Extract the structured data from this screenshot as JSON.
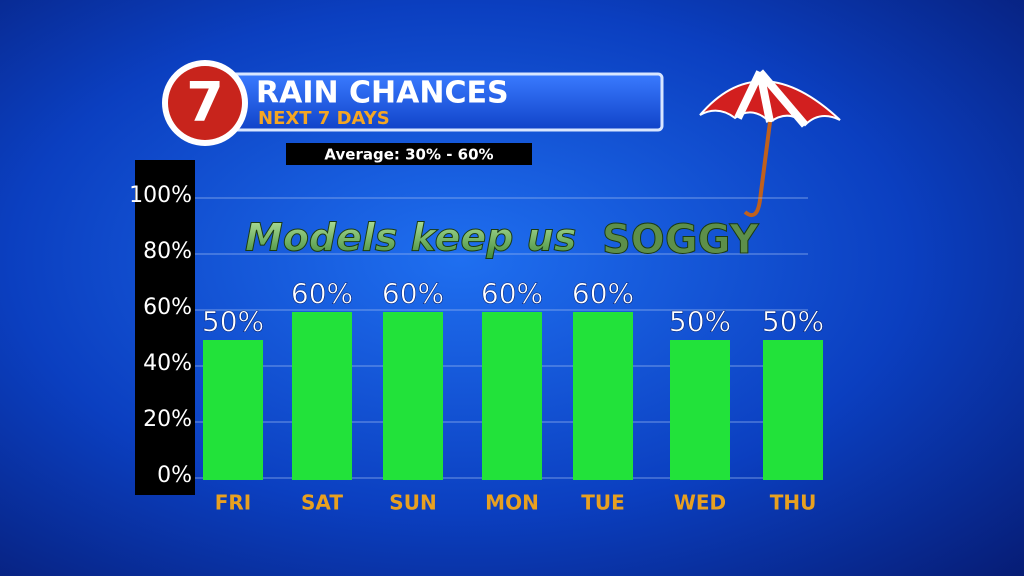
{
  "chart_data": {
    "type": "bar",
    "logo": "7",
    "title": "RAIN CHANCES",
    "subtitle": "NEXT 7 DAYS",
    "note": "Average: 30% - 60%",
    "annotation": "Models keep us",
    "annotation_emphasis": "SOGGY",
    "categories": [
      "FRI",
      "SAT",
      "SUN",
      "MON",
      "TUE",
      "WED",
      "THU"
    ],
    "values": [
      50,
      60,
      60,
      60,
      60,
      50,
      50
    ],
    "value_labels": [
      "50%",
      "60%",
      "60%",
      "60%",
      "60%",
      "50%",
      "50%"
    ],
    "color": "#22e23a",
    "ylim": [
      0,
      100
    ],
    "yticks": [
      {
        "value": 0,
        "label": "0%"
      },
      {
        "value": 20,
        "label": "20%"
      },
      {
        "value": 40,
        "label": "40%"
      },
      {
        "value": 60,
        "label": "60%"
      },
      {
        "value": 80,
        "label": "80%"
      },
      {
        "value": 100,
        "label": "100%"
      }
    ],
    "grid": true
  }
}
